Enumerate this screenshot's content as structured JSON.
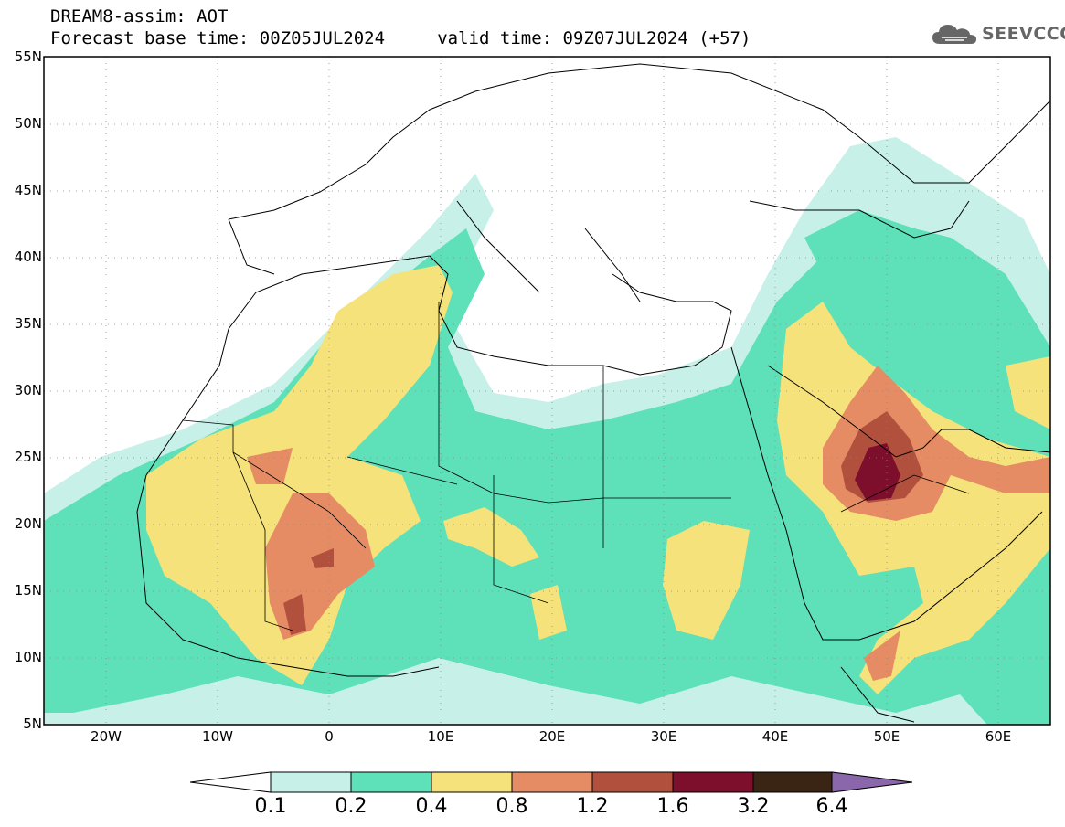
{
  "header": {
    "line1": "DREAM8-assim: AOT",
    "line2": "Forecast base time: 00Z05JUL2024     valid time: 09Z07JUL2024 (+57)"
  },
  "logo": {
    "text": "SEEVCCC",
    "icon": "cloud-logo-icon"
  },
  "axes": {
    "lat_labels": [
      "55N",
      "50N",
      "45N",
      "40N",
      "35N",
      "30N",
      "25N",
      "20N",
      "15N",
      "10N",
      "5N"
    ],
    "lon_labels": [
      "20W",
      "10W",
      "0",
      "10E",
      "20E",
      "30E",
      "40E",
      "50E",
      "60E"
    ]
  },
  "colorbar": {
    "labels": [
      "0.1",
      "0.2",
      "0.4",
      "0.8",
      "1.2",
      "1.6",
      "3.2",
      "6.4"
    ],
    "colors": [
      "#ffffff",
      "#c6f0e8",
      "#5ee0b8",
      "#f6e27a",
      "#e58c64",
      "#b2503e",
      "#7d0e2c",
      "#3a2414",
      "#8a66aa"
    ]
  }
}
